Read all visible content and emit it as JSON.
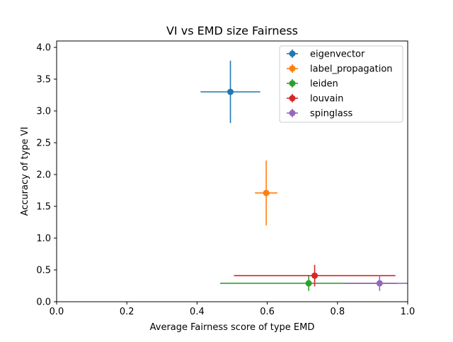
{
  "chart_data": {
    "type": "scatter",
    "title": "VI vs EMD size Fairness",
    "xlabel": "Average Fairness score of type EMD",
    "ylabel": "Accuracy of type VI",
    "xlim": [
      0.0,
      1.0
    ],
    "ylim": [
      0.0,
      4.1
    ],
    "xticks": [
      0.0,
      0.2,
      0.4,
      0.6,
      0.8,
      1.0
    ],
    "xtick_labels": [
      "0.0",
      "0.2",
      "0.4",
      "0.6",
      "0.8",
      "1.0"
    ],
    "yticks": [
      0.0,
      0.5,
      1.0,
      1.5,
      2.0,
      2.5,
      3.0,
      3.5,
      4.0
    ],
    "ytick_labels": [
      "0.0",
      "0.5",
      "1.0",
      "1.5",
      "2.0",
      "2.5",
      "3.0",
      "3.5",
      "4.0"
    ],
    "grid": false,
    "legend_position": "top-right",
    "series": [
      {
        "name": "eigenvector",
        "color": "#1f77b4",
        "x": 0.495,
        "y": 3.3,
        "xerr": 0.085,
        "yerr": 0.49
      },
      {
        "name": "label_propagation",
        "color": "#ff7f0e",
        "x": 0.597,
        "y": 1.71,
        "xerr": 0.032,
        "yerr": 0.51
      },
      {
        "name": "leiden",
        "color": "#2ca02c",
        "x": 0.718,
        "y": 0.29,
        "xerr": 0.252,
        "yerr": 0.12
      },
      {
        "name": "louvain",
        "color": "#d62728",
        "x": 0.735,
        "y": 0.41,
        "xerr": 0.23,
        "yerr": 0.17
      },
      {
        "name": "spinglass",
        "color": "#9467bd",
        "x": 0.92,
        "y": 0.29,
        "xerr": 0.1,
        "yerr": 0.12
      }
    ]
  }
}
